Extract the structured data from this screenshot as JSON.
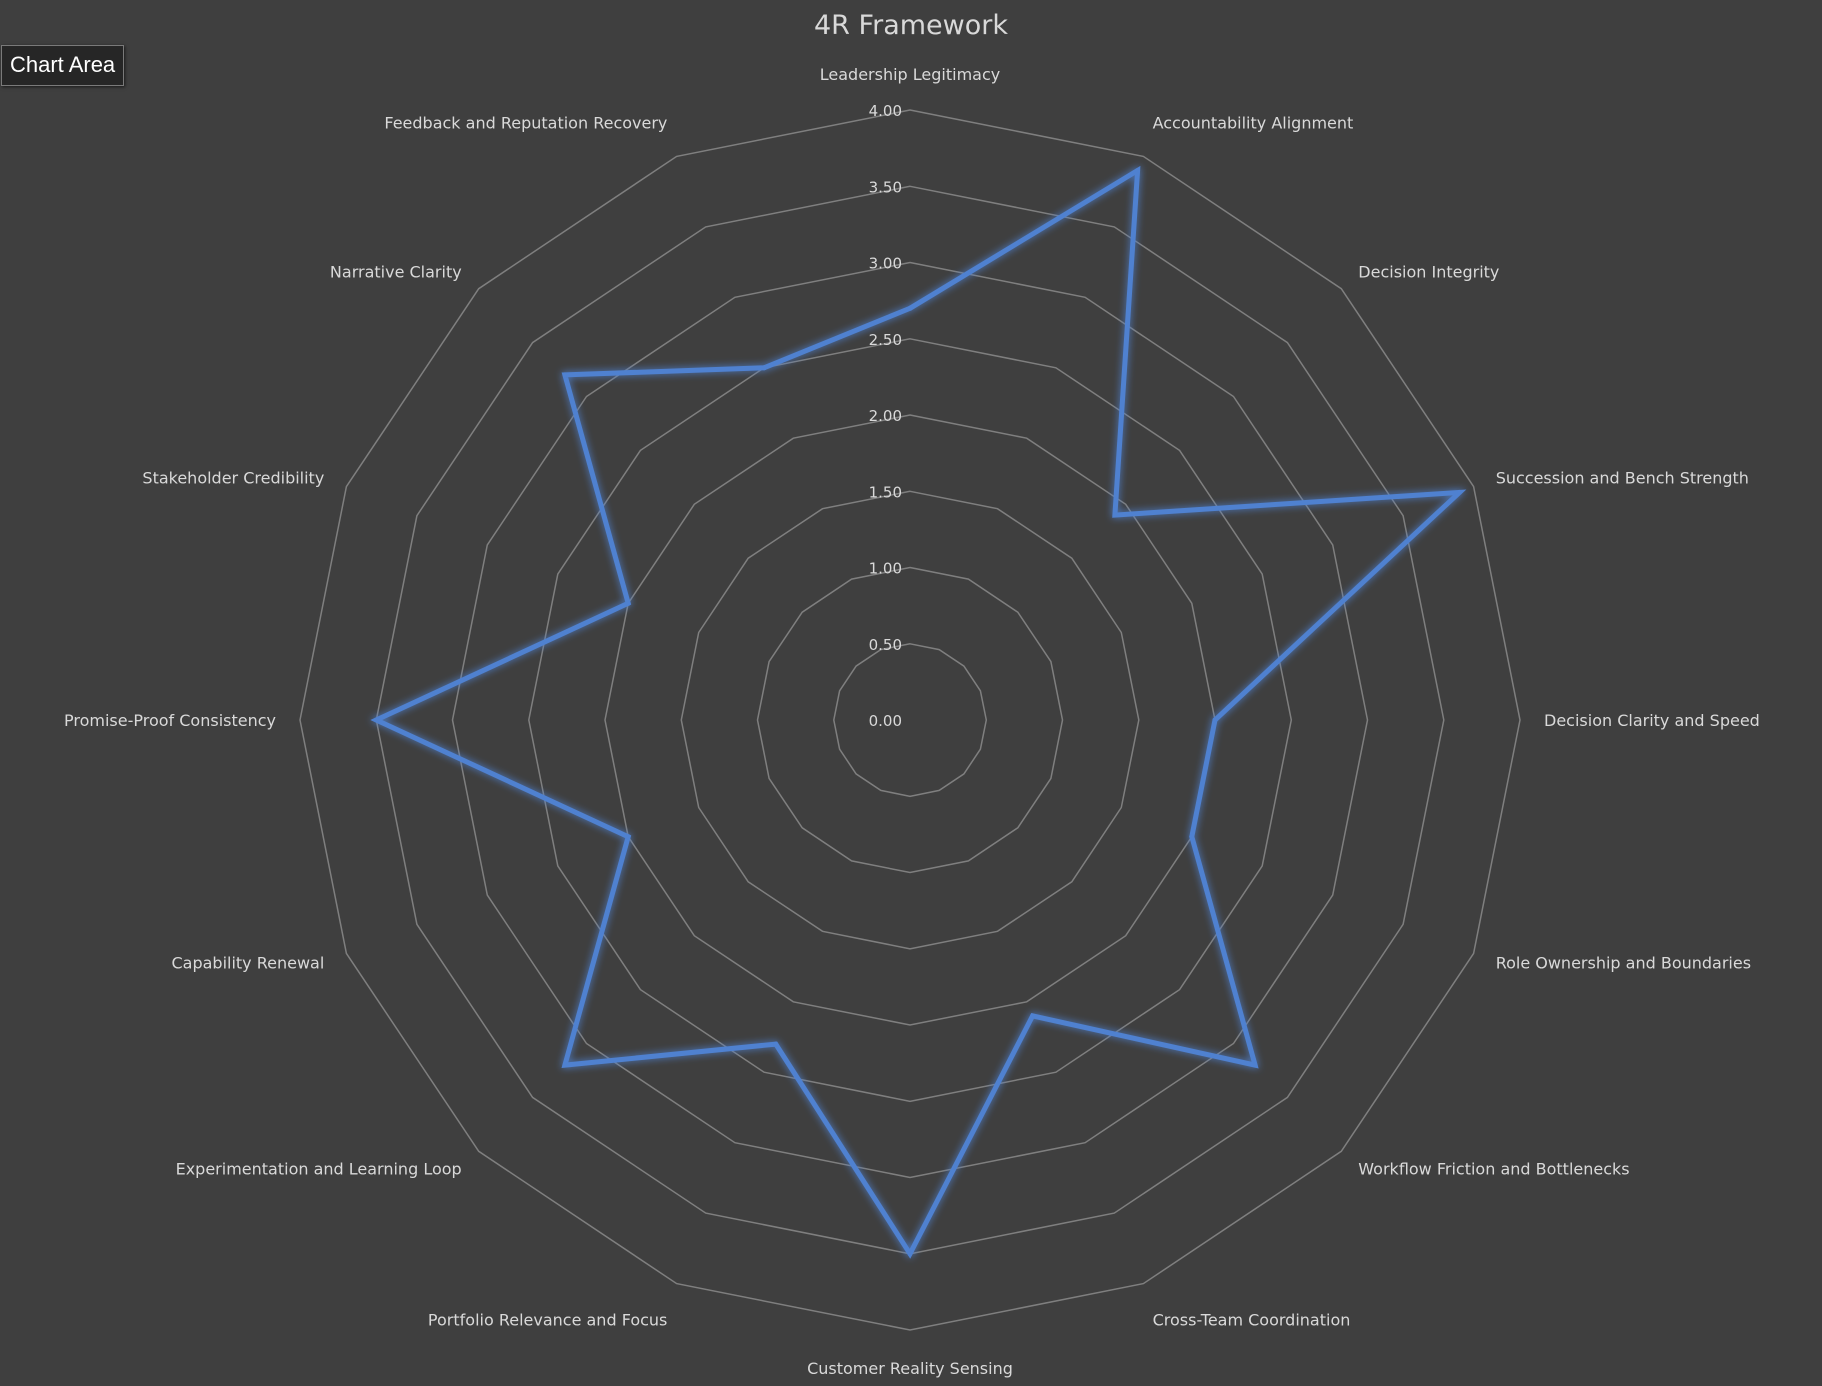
{
  "tooltip": {
    "label": "Chart Area"
  },
  "colors": {
    "background": "#3f3f3f",
    "grid": "#7f7f7f",
    "series": "#4f81d0",
    "text": "#d9d9d9"
  },
  "chart_data": {
    "type": "radar",
    "title": "4R Framework",
    "rlim": [
      0,
      4
    ],
    "ticks": [
      "0.00",
      "0.50",
      "1.00",
      "1.50",
      "2.00",
      "2.50",
      "3.00",
      "3.50",
      "4.00"
    ],
    "grid": true,
    "legend": "none",
    "categories": [
      "Leadership Legitimacy",
      "Accountability Alignment",
      "Decision Integrity",
      "Succession and Bench Strength",
      "Decision Clarity and Speed",
      "Role Ownership and Boundaries",
      "Workflow Friction and Bottlenecks",
      "Cross-Team Coordination",
      "Customer Reality Sensing",
      "Portfolio Relevance and Focus",
      "Experimentation and Learning Loop",
      "Capability Renewal",
      "Promise-Proof Consistency",
      "Stakeholder Credibility",
      "Narrative Clarity",
      "Feedback and Reputation Recovery"
    ],
    "series": [
      {
        "values": [
          2.7,
          3.9,
          1.9,
          3.9,
          2.0,
          2.0,
          3.2,
          2.1,
          3.5,
          2.3,
          3.2,
          2.0,
          3.5,
          2.0,
          3.2,
          2.5
        ]
      }
    ]
  }
}
